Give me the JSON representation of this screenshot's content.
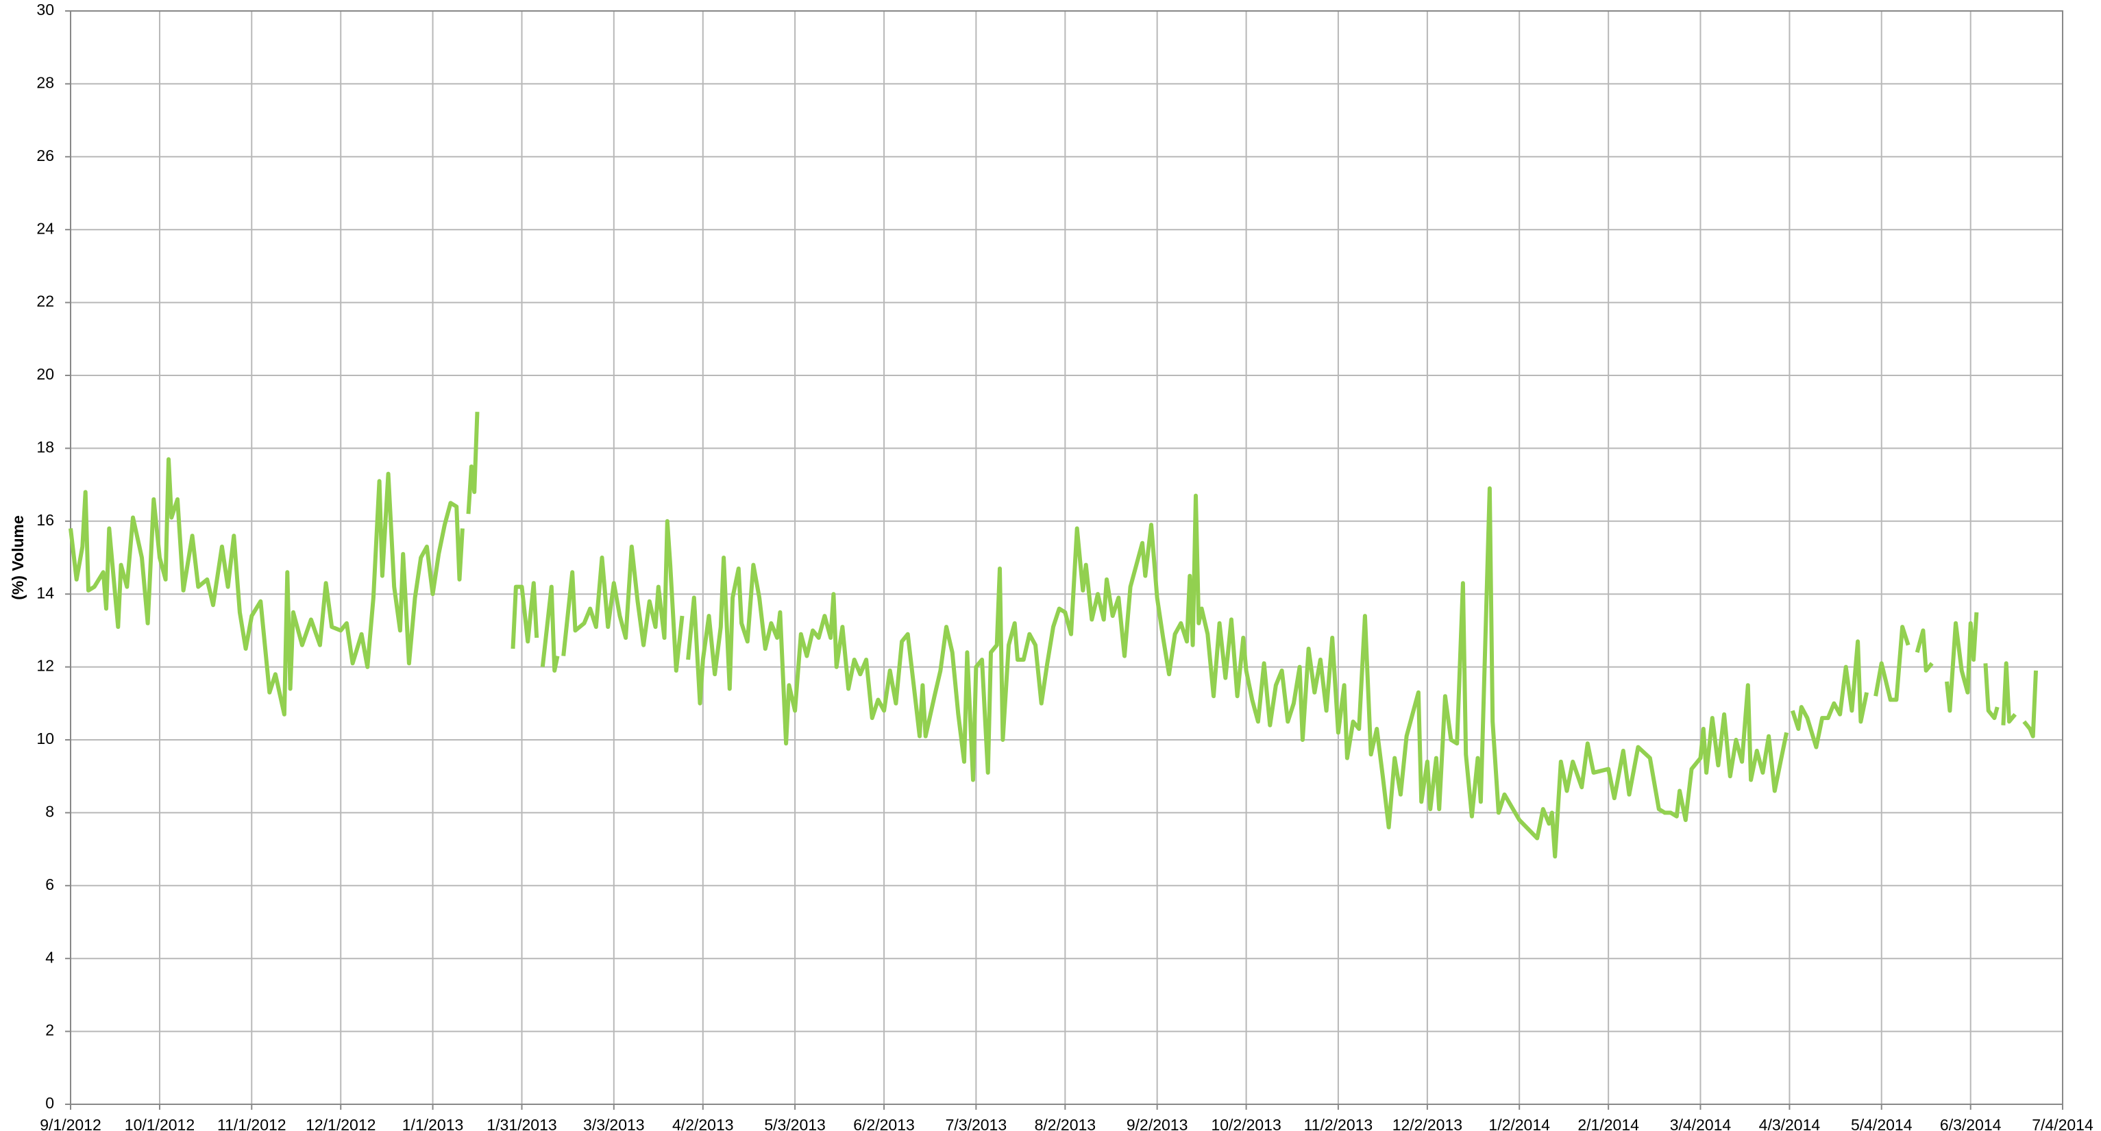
{
  "chart_data": {
    "type": "line",
    "y_label": "(%) Volume",
    "xlim": [
      "9/1/2012",
      "7/4/2014"
    ],
    "xticks": [
      "9/1/2012",
      "10/1/2012",
      "11/1/2012",
      "12/1/2012",
      "1/1/2013",
      "1/31/2013",
      "3/3/2013",
      "4/2/2013",
      "5/3/2013",
      "6/2/2013",
      "7/3/2013",
      "8/2/2013",
      "9/2/2013",
      "10/2/2013",
      "11/2/2013",
      "12/2/2013",
      "1/2/2014",
      "2/1/2014",
      "3/4/2014",
      "4/3/2014",
      "5/4/2014",
      "6/3/2014",
      "7/4/2014"
    ],
    "ylim": [
      0,
      30
    ],
    "yticks": [
      0,
      2,
      4,
      6,
      8,
      10,
      12,
      14,
      16,
      18,
      20,
      22,
      24,
      26,
      28,
      30
    ],
    "grid": true,
    "series": [
      {
        "color": "#92d050",
        "x": [
          "9/1/2012",
          "9/3/2012",
          "9/5/2012",
          "9/6/2012",
          "9/7/2012",
          "9/9/2012",
          "9/12/2012",
          "9/13/2012",
          "9/14/2012",
          "9/17/2012",
          "9/18/2012",
          "9/20/2012",
          "9/22/2012",
          "9/25/2012",
          "9/27/2012",
          "9/29/2012",
          "10/1/2012",
          "10/3/2012",
          "10/4/2012",
          "10/5/2012",
          "10/7/2012",
          "10/9/2012",
          "10/12/2012",
          "10/14/2012",
          "10/17/2012",
          "10/19/2012",
          "10/22/2012",
          "10/24/2012",
          "10/26/2012",
          "10/28/2012",
          "10/30/2012",
          "11/1/2012",
          "11/4/2012",
          "11/7/2012",
          "11/9/2012",
          "11/12/2012",
          "11/13/2012",
          "11/14/2012",
          "11/15/2012",
          "11/18/2012",
          "11/21/2012",
          "11/24/2012",
          "11/26/2012",
          "11/28/2012",
          "12/1/2012",
          "12/3/2012",
          "12/5/2012",
          "12/8/2012",
          "12/10/2012",
          "12/12/2012",
          "12/14/2012",
          "12/15/2012",
          "12/17/2012",
          "12/19/2012",
          "12/21/2012",
          "12/22/2012",
          "12/24/2012",
          "12/26/2012",
          "12/28/2012",
          "12/30/2012",
          "1/1/2013",
          "1/3/2013",
          "1/5/2013",
          "1/7/2013",
          "1/9/2013",
          "1/10/2013",
          "1/11/2013",
          "1/12/2013",
          "1/13/2013",
          "1/14/2013",
          "1/15/2013",
          "1/16/2013",
          "1/22/2013",
          "1/28/2013",
          "1/29/2013",
          "1/31/2013",
          "2/2/2013",
          "2/4/2013",
          "2/5/2013",
          "2/6/2013",
          "2/7/2013",
          "2/10/2013",
          "2/11/2013",
          "2/12/2013",
          "2/13/2013",
          "2/14/2013",
          "2/17/2013",
          "2/18/2013",
          "2/21/2013",
          "2/23/2013",
          "2/25/2013",
          "2/27/2013",
          "3/1/2013",
          "3/3/2013",
          "3/5/2013",
          "3/7/2013",
          "3/9/2013",
          "3/11/2013",
          "3/13/2013",
          "3/15/2013",
          "3/17/2013",
          "3/18/2013",
          "3/20/2013",
          "3/21/2013",
          "3/22/2013",
          "3/24/2013",
          "3/26/2013",
          "3/27/2013",
          "3/28/2013",
          "3/30/2013",
          "4/1/2013",
          "4/2/2013",
          "4/4/2013",
          "4/6/2013",
          "4/8/2013",
          "4/9/2013",
          "4/11/2013",
          "4/12/2013",
          "4/14/2013",
          "4/15/2013",
          "4/17/2013",
          "4/19/2013",
          "4/21/2013",
          "4/23/2013",
          "4/25/2013",
          "4/27/2013",
          "4/28/2013",
          "4/30/2013",
          "5/1/2013",
          "5/3/2013",
          "5/5/2013",
          "5/7/2013",
          "5/9/2013",
          "5/11/2013",
          "5/13/2013",
          "5/15/2013",
          "5/16/2013",
          "5/17/2013",
          "5/19/2013",
          "5/21/2013",
          "5/23/2013",
          "5/25/2013",
          "5/27/2013",
          "5/29/2013",
          "5/31/2013",
          "6/2/2013",
          "6/4/2013",
          "6/6/2013",
          "6/8/2013",
          "6/10/2013",
          "6/12/2013",
          "6/14/2013",
          "6/15/2013",
          "6/16/2013",
          "6/19/2013",
          "6/21/2013",
          "6/23/2013",
          "6/25/2013",
          "6/27/2013",
          "6/29/2013",
          "6/30/2013",
          "7/2/2013",
          "7/3/2013",
          "7/5/2013",
          "7/7/2013",
          "7/8/2013",
          "7/10/2013",
          "7/11/2013",
          "7/12/2013",
          "7/14/2013",
          "7/16/2013",
          "7/17/2013",
          "7/19/2013",
          "7/21/2013",
          "7/23/2013",
          "7/25/2013",
          "7/27/2013",
          "7/29/2013",
          "7/31/2013",
          "8/2/2013",
          "8/4/2013",
          "8/6/2013",
          "8/8/2013",
          "8/9/2013",
          "8/11/2013",
          "8/13/2013",
          "8/15/2013",
          "8/16/2013",
          "8/18/2013",
          "8/20/2013",
          "8/22/2013",
          "8/24/2013",
          "8/26/2013",
          "8/28/2013",
          "8/29/2013",
          "8/31/2013",
          "9/2/2013",
          "9/4/2013",
          "9/6/2013",
          "9/8/2013",
          "9/10/2013",
          "9/12/2013",
          "9/13/2013",
          "9/14/2013",
          "9/15/2013",
          "9/16/2013",
          "9/17/2013",
          "9/19/2013",
          "9/21/2013",
          "9/23/2013",
          "9/25/2013",
          "9/27/2013",
          "9/29/2013",
          "10/1/2013",
          "10/2/2013",
          "10/4/2013",
          "10/6/2013",
          "10/8/2013",
          "10/10/2013",
          "10/12/2013",
          "10/14/2013",
          "10/16/2013",
          "10/18/2013",
          "10/20/2013",
          "10/21/2013",
          "10/23/2013",
          "10/25/2013",
          "10/27/2013",
          "10/29/2013",
          "10/31/2013",
          "11/2/2013",
          "11/4/2013",
          "11/5/2013",
          "11/7/2013",
          "11/9/2013",
          "11/11/2013",
          "11/13/2013",
          "11/15/2013",
          "11/17/2013",
          "11/19/2013",
          "11/21/2013",
          "11/23/2013",
          "11/25/2013",
          "11/27/2013",
          "11/29/2013",
          "11/30/2013",
          "12/2/2013",
          "12/3/2013",
          "12/5/2013",
          "12/6/2013",
          "12/8/2013",
          "12/10/2013",
          "12/12/2013",
          "12/14/2013",
          "12/15/2013",
          "12/17/2013",
          "12/19/2013",
          "12/20/2013",
          "12/23/2013",
          "12/24/2013",
          "12/26/2013",
          "12/28/2013",
          "1/2/2014",
          "1/8/2014",
          "1/10/2014",
          "1/12/2014",
          "1/13/2014",
          "1/14/2014",
          "1/16/2014",
          "1/18/2014",
          "1/20/2014",
          "1/23/2014",
          "1/25/2014",
          "1/27/2014",
          "2/1/2014",
          "2/3/2014",
          "2/6/2014",
          "2/8/2014",
          "2/11/2014",
          "2/15/2014",
          "2/18/2014",
          "2/20/2014",
          "2/22/2014",
          "2/24/2014",
          "2/25/2014",
          "2/27/2014",
          "3/1/2014",
          "3/4/2014",
          "3/5/2014",
          "3/6/2014",
          "3/8/2014",
          "3/10/2014",
          "3/12/2014",
          "3/14/2014",
          "3/16/2014",
          "3/18/2014",
          "3/20/2014",
          "3/21/2014",
          "3/23/2014",
          "3/25/2014",
          "3/27/2014",
          "3/29/2014",
          "3/31/2014",
          "4/2/2014",
          "4/3/2014",
          "4/4/2014",
          "4/6/2014",
          "4/7/2014",
          "4/9/2014",
          "4/12/2014",
          "4/14/2014",
          "4/16/2014",
          "4/18/2014",
          "4/20/2014",
          "4/22/2014",
          "4/24/2014",
          "4/26/2014",
          "4/27/2014",
          "4/29/2014",
          "4/30/2014",
          "5/2/2014",
          "5/4/2014",
          "5/7/2014",
          "5/9/2014",
          "5/11/2014",
          "5/13/2014",
          "5/14/2014",
          "5/16/2014",
          "5/18/2014",
          "5/19/2014",
          "5/21/2014",
          "5/23/2014",
          "5/26/2014",
          "5/27/2014",
          "5/29/2014",
          "5/31/2014",
          "6/2/2014",
          "6/3/2014",
          "6/4/2014",
          "6/5/2014",
          "6/7/2014",
          "6/8/2014",
          "6/9/2014",
          "6/11/2014",
          "6/12/2014",
          "6/13/2014",
          "6/14/2014",
          "6/15/2014",
          "6/16/2014",
          "6/18/2014",
          "6/20/2014",
          "6/21/2014",
          "6/23/2014",
          "6/24/2014",
          "6/25/2014"
        ],
        "values": [
          15.8,
          14.4,
          15.3,
          16.8,
          14.1,
          14.2,
          14.6,
          13.6,
          15.8,
          13.1,
          14.8,
          14.2,
          16.1,
          15.0,
          13.2,
          16.6,
          15.0,
          14.4,
          17.7,
          16.1,
          16.6,
          14.1,
          15.6,
          14.2,
          14.4,
          13.7,
          15.3,
          14.2,
          15.6,
          13.5,
          12.5,
          13.4,
          13.8,
          11.3,
          11.8,
          10.7,
          14.6,
          11.4,
          13.5,
          12.6,
          13.3,
          12.6,
          14.3,
          13.1,
          13.0,
          13.2,
          12.1,
          12.9,
          12.0,
          13.9,
          17.1,
          14.5,
          17.3,
          14.2,
          13.0,
          15.1,
          12.1,
          13.9,
          15.0,
          15.3,
          14.0,
          15.1,
          15.9,
          16.5,
          16.4,
          14.4,
          15.8,
          null,
          16.2,
          17.5,
          16.8,
          19.0,
          null,
          12.5,
          14.2,
          14.2,
          12.7,
          14.3,
          12.8,
          null,
          12.0,
          14.2,
          11.9,
          12.3,
          null,
          12.3,
          14.6,
          13.0,
          13.2,
          13.6,
          13.1,
          15.0,
          13.1,
          14.3,
          13.4,
          12.8,
          15.3,
          13.8,
          12.6,
          13.8,
          13.1,
          14.2,
          12.8,
          16.0,
          14.8,
          11.9,
          13.4,
          null,
          12.2,
          13.9,
          11.0,
          12.2,
          13.4,
          11.8,
          13.1,
          15.0,
          11.4,
          13.9,
          14.7,
          13.2,
          12.7,
          14.8,
          13.9,
          12.5,
          13.2,
          12.8,
          13.5,
          9.9,
          11.5,
          10.8,
          12.9,
          12.3,
          13.0,
          12.8,
          13.4,
          12.8,
          14.0,
          12.0,
          13.1,
          11.4,
          12.2,
          11.8,
          12.2,
          10.6,
          11.1,
          10.8,
          11.9,
          11.0,
          12.7,
          12.9,
          11.5,
          10.1,
          11.5,
          10.1,
          11.2,
          11.9,
          13.1,
          12.4,
          10.7,
          9.4,
          12.4,
          8.9,
          12.0,
          12.2,
          9.1,
          12.4,
          12.6,
          14.7,
          10.0,
          12.6,
          13.2,
          12.2,
          12.2,
          12.9,
          12.6,
          11.0,
          12.1,
          13.1,
          13.6,
          13.5,
          12.9,
          15.8,
          14.1,
          14.8,
          13.3,
          14.0,
          13.3,
          14.4,
          13.4,
          13.9,
          12.3,
          14.2,
          14.8,
          15.4,
          14.5,
          15.9,
          13.9,
          12.8,
          11.8,
          12.9,
          13.2,
          12.7,
          14.5,
          12.6,
          16.7,
          13.2,
          13.6,
          12.9,
          11.2,
          13.2,
          11.7,
          13.3,
          11.2,
          12.8,
          11.9,
          11.1,
          10.5,
          12.1,
          10.4,
          11.5,
          11.9,
          10.5,
          11.0,
          12.0,
          10.0,
          12.5,
          11.3,
          12.2,
          10.8,
          12.8,
          10.2,
          11.5,
          9.5,
          10.5,
          10.3,
          13.4,
          9.6,
          10.3,
          9.0,
          7.6,
          9.5,
          8.5,
          10.1,
          10.7,
          11.3,
          8.3,
          9.4,
          8.1,
          9.5,
          8.1,
          11.2,
          10.0,
          9.9,
          14.3,
          9.6,
          7.9,
          9.5,
          8.3,
          16.9,
          10.5,
          8.0,
          8.5,
          7.8,
          7.3,
          8.1,
          7.7,
          8.0,
          6.8,
          9.4,
          8.6,
          9.4,
          8.7,
          9.9,
          9.1,
          9.2,
          8.4,
          9.7,
          8.5,
          9.8,
          9.5,
          8.1,
          8.0,
          8.0,
          7.9,
          8.6,
          7.8,
          9.2,
          9.5,
          10.3,
          9.1,
          10.6,
          9.3,
          10.7,
          9.0,
          10.0,
          9.4,
          11.5,
          8.9,
          9.7,
          9.1,
          10.1,
          8.6,
          9.4,
          10.2,
          null,
          10.8,
          10.3,
          10.9,
          10.6,
          9.8,
          10.6,
          10.6,
          11.0,
          10.7,
          12.0,
          10.8,
          12.7,
          10.5,
          11.3,
          null,
          11.2,
          12.1,
          11.1,
          11.1,
          13.1,
          12.6,
          null,
          12.4,
          13.0,
          11.9,
          12.1,
          null,
          11.6,
          10.8,
          13.2,
          11.9,
          11.3,
          13.2,
          12.2,
          13.5,
          null,
          12.1,
          10.8,
          10.6,
          10.9,
          null,
          10.4,
          12.1,
          10.5,
          10.7,
          null,
          10.5,
          10.3,
          10.1,
          11.9
        ]
      }
    ]
  }
}
